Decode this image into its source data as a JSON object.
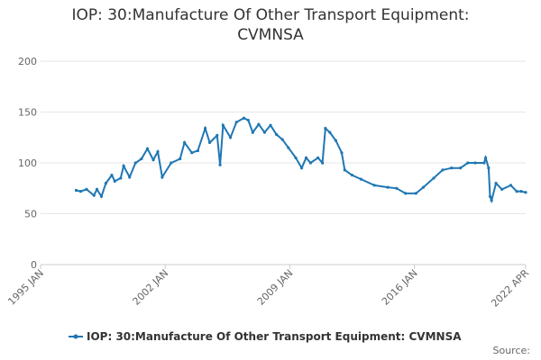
{
  "chart_data": {
    "type": "line",
    "title": [
      "IOP: 30:Manufacture Of Other Transport Equipment:",
      "CVMNSA"
    ],
    "source": "Source:",
    "xlim": [
      "1995-01",
      "2022-04"
    ],
    "xticks": [
      {
        "value": "1995-01",
        "label": "1995 JAN"
      },
      {
        "value": "2002-01",
        "label": "2002 JAN"
      },
      {
        "value": "2009-01",
        "label": "2009 JAN"
      },
      {
        "value": "2016-01",
        "label": "2016 JAN"
      },
      {
        "value": "2022-04",
        "label": "2022 APR"
      }
    ],
    "ylim": [
      0,
      200
    ],
    "yticks": [
      0,
      50,
      100,
      150,
      200
    ],
    "grid": true,
    "series": [
      {
        "name": "IOP: 30:Manufacture Of Other Transport Equipment: CVMNSA",
        "color": "#1f77b4",
        "x": [
          "1997-01",
          "1997-04",
          "1997-08",
          "1998-01",
          "1998-03",
          "1998-06",
          "1998-09",
          "1999-01",
          "1999-03",
          "1999-07",
          "1999-09",
          "2000-01",
          "2000-05",
          "2000-09",
          "2001-01",
          "2001-05",
          "2001-08",
          "2001-11",
          "2002-05",
          "2002-11",
          "2003-02",
          "2003-07",
          "2003-11",
          "2004-04",
          "2004-07",
          "2004-12",
          "2005-02",
          "2005-04",
          "2005-09",
          "2006-01",
          "2006-06",
          "2006-09",
          "2006-12",
          "2007-04",
          "2007-08",
          "2007-12",
          "2008-04",
          "2008-08",
          "2008-12",
          "2009-05",
          "2009-09",
          "2009-12",
          "2010-03",
          "2010-08",
          "2010-11",
          "2011-01",
          "2011-04",
          "2011-08",
          "2011-12",
          "2012-02",
          "2012-07",
          "2013-01",
          "2013-10",
          "2014-07",
          "2015-01",
          "2015-07",
          "2016-02",
          "2016-07",
          "2017-02",
          "2017-08",
          "2018-02",
          "2018-08",
          "2019-01",
          "2019-06",
          "2019-12",
          "2020-01",
          "2020-03",
          "2020-04",
          "2020-05",
          "2020-08",
          "2020-12",
          "2021-06",
          "2021-10",
          "2022-01",
          "2022-04"
        ],
        "values": [
          73,
          72,
          74,
          68,
          74,
          67,
          80,
          88,
          82,
          85,
          97,
          86,
          100,
          104,
          114,
          103,
          111,
          86,
          100,
          104,
          120,
          110,
          112,
          134,
          120,
          127,
          98,
          137,
          125,
          140,
          144,
          142,
          130,
          138,
          130,
          137,
          128,
          123,
          115,
          105,
          95,
          105,
          100,
          105,
          100,
          134,
          130,
          122,
          110,
          93,
          88,
          84,
          78,
          76,
          75,
          70,
          70,
          76,
          85,
          93,
          95,
          95,
          100,
          100,
          100,
          105,
          95,
          67,
          63,
          80,
          74,
          78,
          72,
          72,
          71
        ]
      }
    ]
  }
}
